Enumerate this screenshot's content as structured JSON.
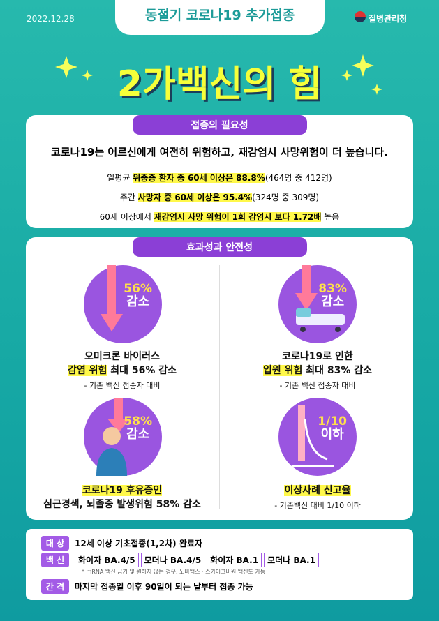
{
  "header": {
    "date": "2022.12.28",
    "title": "동절기 코로나19 추가접종",
    "org": "질병관리청",
    "main_title": "2가백신의 힘"
  },
  "need": {
    "title": "접종의 필요성",
    "headline": "코로나19는 어르신에게 여전히 위험하고, 재감염시 사망위험이 더 높습니다.",
    "lines": [
      {
        "pre": "일평균 ",
        "hl": "위중증 환자 중 60세 이상은 88.8%",
        "post": "(464명 중 412명)"
      },
      {
        "pre": "주간 ",
        "hl": "사망자 중 60세 이상은 95.4%",
        "post": "(324명 중 309명)"
      },
      {
        "pre": "60세 이상에서 ",
        "hl": "재감염시 사망 위험이 1회 감염시 보다 1.72배",
        "post": " 높음"
      }
    ]
  },
  "effect": {
    "title": "효과성과 안전성",
    "cards": [
      {
        "badge": "56%",
        "badge_sub": "감소",
        "line1": "오미크론 바이러스",
        "hl": "감염 위험",
        "rest": " 최대 56% 감소",
        "note": "- 기존 백신 접종자 대비"
      },
      {
        "badge": "83%",
        "badge_sub": "감소",
        "line1": "코로나19로 인한",
        "hl": "입원 위험",
        "rest": " 최대 83% 감소",
        "note": "- 기존 백신 접종자 대비"
      },
      {
        "badge": "58%",
        "badge_sub": "감소",
        "hl": "코로나19 후유증인",
        "line2": "심근경색, 뇌졸중 발생위험 58% 감소"
      },
      {
        "badge": "1/10",
        "badge_sub": "이하",
        "hl": "이상사례 신고율",
        "note": "- 기존백신 대비 1/10 이하"
      }
    ]
  },
  "info": {
    "target": {
      "label": "대 상",
      "text": "12세 이상 기초접종(1,2차) 완료자"
    },
    "vaccine": {
      "label": "백 신",
      "items": [
        "화이자 BA.4/5",
        "모더나 BA.4/5",
        "화이자 BA.1",
        "모더나 BA.1"
      ],
      "note": "* mRNA 백신 금기 및 원하지 않는 경우, 노바백스 · 스카이코비원 백신도 가능"
    },
    "interval": {
      "label": "간 격",
      "text": "마지막 접종일 이후 90일이 되는 날부터 접종 가능"
    }
  }
}
